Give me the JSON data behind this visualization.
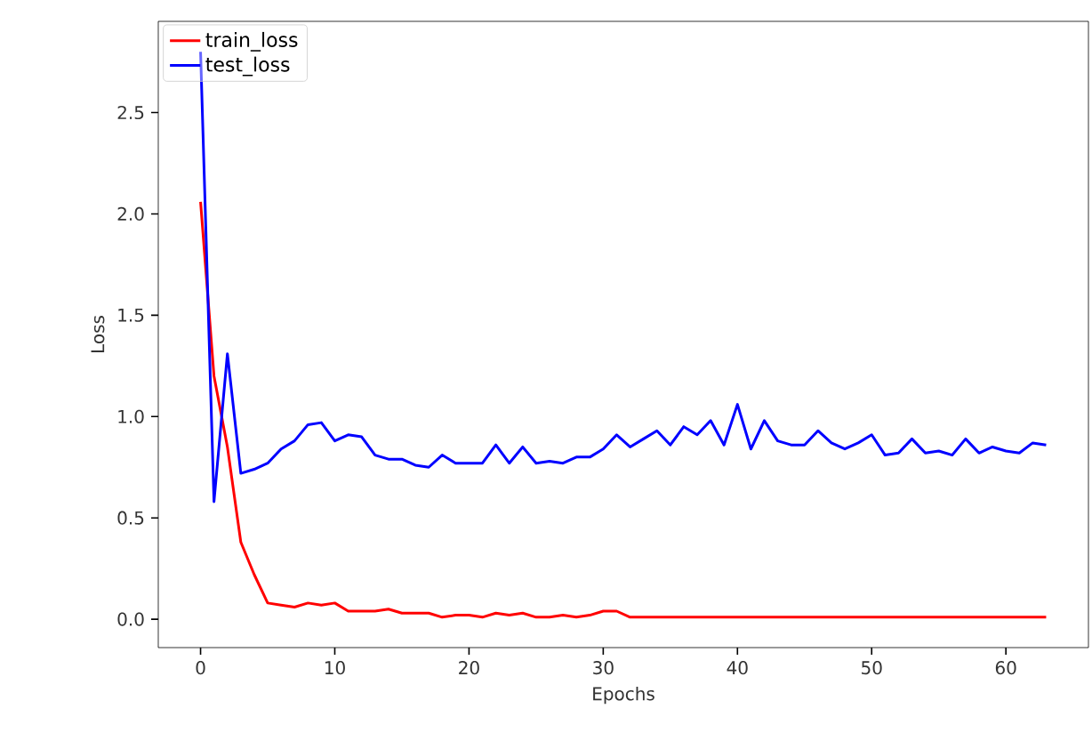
{
  "chart_data": {
    "type": "line",
    "xlabel": "Epochs",
    "ylabel": "Loss",
    "legend": "top left",
    "grid": false,
    "marker": "none",
    "line_style": "solid",
    "x": [
      0,
      1,
      2,
      3,
      4,
      5,
      6,
      7,
      8,
      9,
      10,
      11,
      12,
      13,
      14,
      15,
      16,
      17,
      18,
      19,
      20,
      21,
      22,
      23,
      24,
      25,
      26,
      27,
      28,
      29,
      30,
      31,
      32,
      33,
      34,
      35,
      36,
      37,
      38,
      39,
      40,
      41,
      42,
      43,
      44,
      45,
      46,
      47,
      48,
      49,
      50,
      51,
      52,
      53,
      54,
      55,
      56,
      57,
      58,
      59,
      60,
      61,
      62,
      63
    ],
    "xlim": [
      -3.15,
      66.15
    ],
    "xticks": [
      0,
      10,
      20,
      30,
      40,
      50,
      60
    ],
    "ylim": [
      -0.14,
      2.95
    ],
    "yticks": [
      {
        "value": 0,
        "label": "0.0"
      },
      {
        "value": 0.5,
        "label": "0.5"
      },
      {
        "value": 1,
        "label": "1.0"
      },
      {
        "value": 1.5,
        "label": "1.5"
      },
      {
        "value": 2,
        "label": "2.0"
      },
      {
        "value": 2.5,
        "label": "2.5"
      }
    ],
    "series": [
      {
        "name": "train_loss",
        "color": "#ff0000",
        "values": [
          2.06,
          1.2,
          0.85,
          0.38,
          0.22,
          0.08,
          0.07,
          0.06,
          0.08,
          0.07,
          0.08,
          0.04,
          0.04,
          0.04,
          0.05,
          0.03,
          0.03,
          0.03,
          0.01,
          0.02,
          0.02,
          0.01,
          0.03,
          0.02,
          0.03,
          0.01,
          0.01,
          0.02,
          0.01,
          0.02,
          0.04,
          0.04,
          0.01,
          0.01,
          0.01,
          0.01,
          0.01,
          0.01,
          0.01,
          0.01,
          0.01,
          0.01,
          0.01,
          0.01,
          0.01,
          0.01,
          0.01,
          0.01,
          0.01,
          0.01,
          0.01,
          0.01,
          0.01,
          0.01,
          0.01,
          0.01,
          0.01,
          0.01,
          0.01,
          0.01,
          0.01,
          0.01,
          0.01,
          0.01
        ]
      },
      {
        "name": "test_loss",
        "color": "#0000ff",
        "values": [
          2.8,
          0.58,
          1.31,
          0.72,
          0.74,
          0.77,
          0.84,
          0.88,
          0.96,
          0.97,
          0.88,
          0.91,
          0.9,
          0.81,
          0.79,
          0.79,
          0.76,
          0.75,
          0.81,
          0.77,
          0.77,
          0.77,
          0.86,
          0.77,
          0.85,
          0.77,
          0.78,
          0.77,
          0.8,
          0.8,
          0.84,
          0.91,
          0.85,
          0.89,
          0.93,
          0.86,
          0.95,
          0.91,
          0.98,
          0.86,
          1.06,
          0.84,
          0.98,
          0.88,
          0.86,
          0.86,
          0.93,
          0.87,
          0.84,
          0.87,
          0.91,
          0.81,
          0.82,
          0.89,
          0.82,
          0.83,
          0.81,
          0.89,
          0.82,
          0.85,
          0.83,
          0.82,
          0.87,
          0.86
        ]
      }
    ]
  }
}
